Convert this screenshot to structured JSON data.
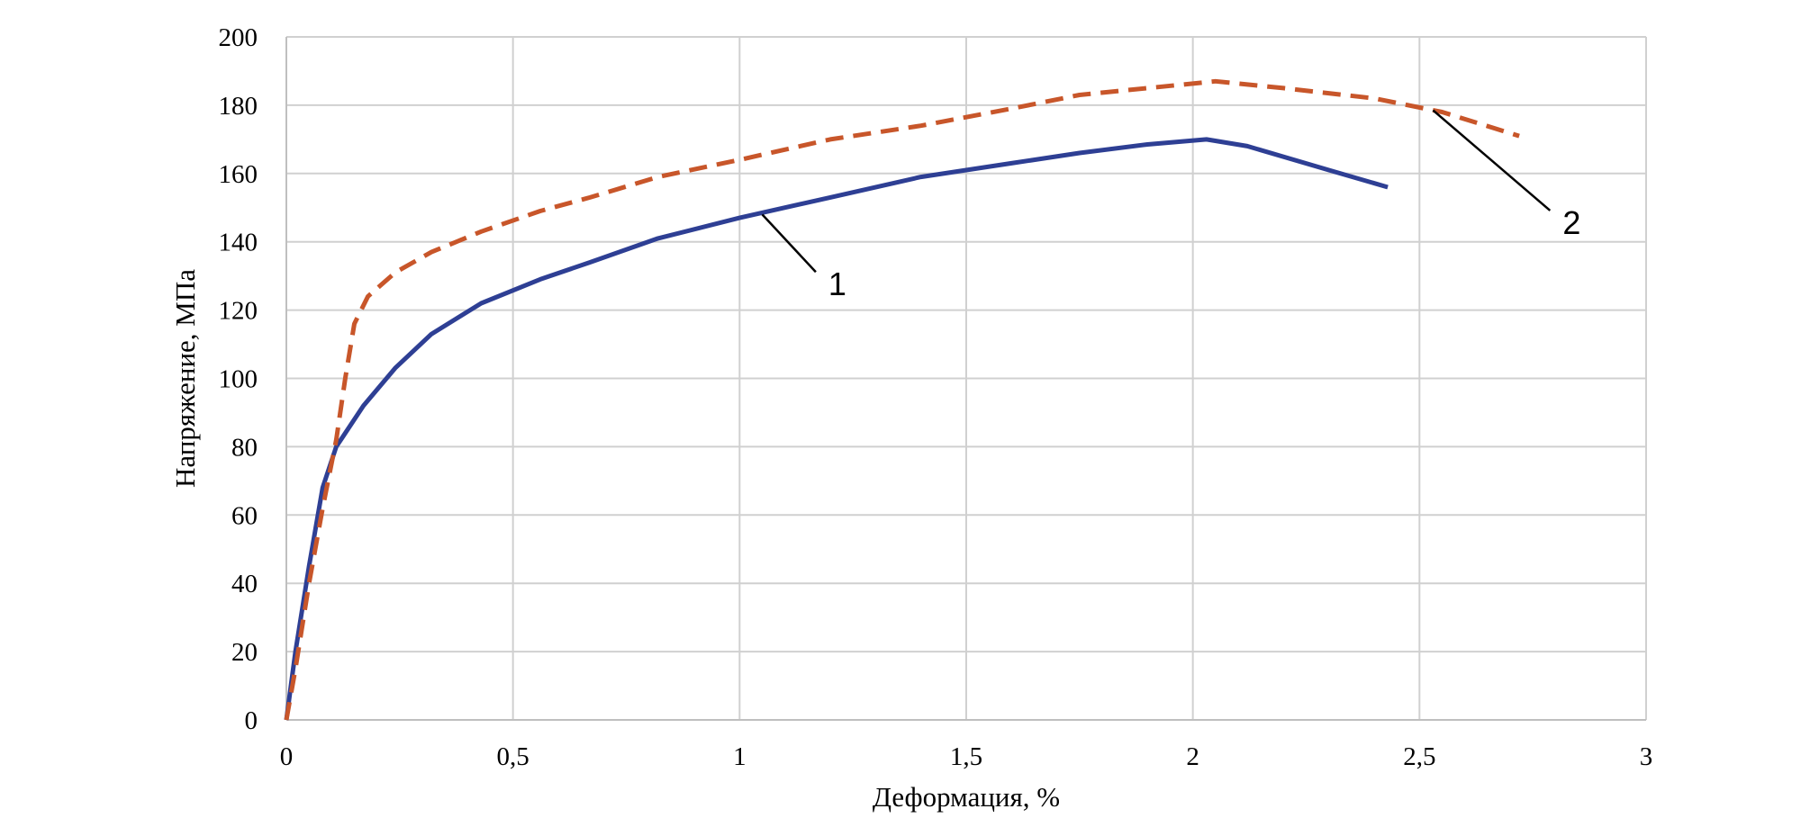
{
  "chart_data": {
    "type": "line",
    "xlabel": "Деформация, %",
    "ylabel": "Напряжение, МПа",
    "xlim": [
      0,
      3
    ],
    "ylim": [
      0,
      200
    ],
    "x_ticks": [
      "0",
      "0,5",
      "1",
      "1,5",
      "2",
      "2,5",
      "3"
    ],
    "y_ticks": [
      "0",
      "20",
      "40",
      "60",
      "80",
      "100",
      "120",
      "140",
      "160",
      "180",
      "200"
    ],
    "grid": true,
    "legend": "none",
    "series": [
      {
        "label": "1",
        "color": "#2e3f94",
        "style": "solid",
        "x": [
          0,
          0.02,
          0.05,
          0.08,
          0.11,
          0.17,
          0.24,
          0.32,
          0.43,
          0.56,
          0.67,
          0.82,
          1.0,
          1.2,
          1.4,
          1.6,
          1.75,
          1.9,
          2.03,
          2.12,
          2.3,
          2.43
        ],
        "y": [
          0,
          20,
          45,
          68,
          80,
          92,
          103,
          113,
          122,
          129,
          134,
          141,
          147,
          153,
          159,
          163,
          166,
          168.5,
          170,
          168,
          161,
          156
        ]
      },
      {
        "label": "2",
        "color": "#c8562a",
        "style": "dashed",
        "x": [
          0,
          0.02,
          0.05,
          0.08,
          0.11,
          0.13,
          0.15,
          0.18,
          0.24,
          0.32,
          0.43,
          0.56,
          0.67,
          0.82,
          1.0,
          1.2,
          1.4,
          1.6,
          1.75,
          1.9,
          2.05,
          2.2,
          2.4,
          2.55,
          2.72
        ],
        "y": [
          0,
          15,
          40,
          62,
          82,
          100,
          116,
          124,
          131,
          137,
          143,
          149,
          153,
          159,
          164,
          170,
          174,
          179,
          183,
          185,
          187,
          185,
          182,
          178,
          171
        ]
      }
    ],
    "annotations": [
      {
        "text": "1",
        "target_x": 1.05,
        "target_y": 148,
        "label_x": 1.18,
        "label_y": 128
      },
      {
        "text": "2",
        "target_x": 2.53,
        "target_y": 178.5,
        "label_x": 2.8,
        "label_y": 146
      }
    ]
  }
}
